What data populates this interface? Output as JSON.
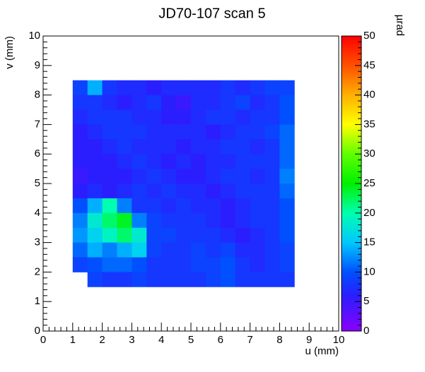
{
  "chart_data": {
    "type": "heatmap",
    "title": "JD70-107 scan 5",
    "x_label": "u (mm)",
    "y_label": "v (mm)",
    "z_label": "µrad",
    "xlim": [
      0,
      10
    ],
    "ylim": [
      0,
      10
    ],
    "zlim": [
      0,
      50
    ],
    "xticks": [
      0,
      1,
      2,
      3,
      4,
      5,
      6,
      7,
      8,
      9,
      10
    ],
    "yticks": [
      0,
      1,
      2,
      3,
      4,
      5,
      6,
      7,
      8,
      9,
      10
    ],
    "zticks": [
      0,
      5,
      10,
      15,
      20,
      25,
      30,
      35,
      40,
      45,
      50
    ],
    "colorscale": [
      [
        0,
        "#8a00ff"
      ],
      [
        0.12,
        "#2a1eff"
      ],
      [
        0.2,
        "#0050ff"
      ],
      [
        0.3,
        "#00c8ff"
      ],
      [
        0.4,
        "#00ffb0"
      ],
      [
        0.5,
        "#00f000"
      ],
      [
        0.6,
        "#60ff00"
      ],
      [
        0.7,
        "#ffff00"
      ],
      [
        0.8,
        "#ffb000"
      ],
      [
        0.9,
        "#ff5000"
      ],
      [
        1,
        "#ff0000"
      ]
    ],
    "x": [
      1.25,
      1.75,
      2.25,
      2.75,
      3.25,
      3.75,
      4.25,
      4.75,
      5.25,
      5.75,
      6.25,
      6.75,
      7.25,
      7.75,
      8.25
    ],
    "y": [
      8.25,
      7.75,
      7.25,
      6.75,
      6.25,
      5.75,
      5.25,
      4.75,
      4.25,
      3.75,
      3.25,
      2.75,
      2.25,
      1.75
    ],
    "z": [
      [
        9,
        14,
        8,
        7,
        7,
        6,
        7,
        7,
        7,
        7,
        8,
        7,
        8,
        9,
        9
      ],
      [
        8,
        8,
        7,
        6,
        7,
        8,
        6,
        5,
        7,
        7,
        8,
        9,
        7,
        8,
        10
      ],
      [
        7,
        8,
        8,
        8,
        7,
        7,
        6,
        6,
        7,
        8,
        8,
        7,
        8,
        8,
        10
      ],
      [
        6,
        7,
        8,
        8,
        8,
        7,
        7,
        7,
        7,
        6,
        7,
        8,
        8,
        9,
        11
      ],
      [
        6,
        6,
        7,
        8,
        7,
        7,
        7,
        6,
        7,
        7,
        8,
        8,
        7,
        8,
        11
      ],
      [
        6,
        6,
        6,
        7,
        8,
        7,
        6,
        7,
        6,
        7,
        7,
        8,
        8,
        8,
        11
      ],
      [
        5,
        6,
        6,
        6,
        7,
        8,
        7,
        6,
        6,
        7,
        8,
        8,
        7,
        8,
        12
      ],
      [
        6,
        7,
        6,
        7,
        8,
        7,
        8,
        7,
        7,
        6,
        7,
        8,
        8,
        8,
        11
      ],
      [
        10,
        14,
        20,
        12,
        8,
        8,
        7,
        8,
        7,
        7,
        6,
        7,
        8,
        8,
        10
      ],
      [
        12,
        18,
        22,
        24,
        12,
        9,
        8,
        8,
        8,
        7,
        6,
        7,
        8,
        8,
        10
      ],
      [
        13,
        16,
        19,
        22,
        18,
        9,
        9,
        8,
        8,
        8,
        7,
        6,
        7,
        8,
        10
      ],
      [
        11,
        14,
        12,
        14,
        16,
        9,
        8,
        8,
        9,
        8,
        9,
        7,
        7,
        8,
        9
      ],
      [
        9,
        10,
        11,
        11,
        10,
        8,
        8,
        8,
        9,
        9,
        10,
        8,
        7,
        8,
        9
      ],
      [
        null,
        9,
        8,
        8,
        9,
        8,
        8,
        8,
        8,
        9,
        10,
        8,
        8,
        8,
        8
      ]
    ]
  }
}
